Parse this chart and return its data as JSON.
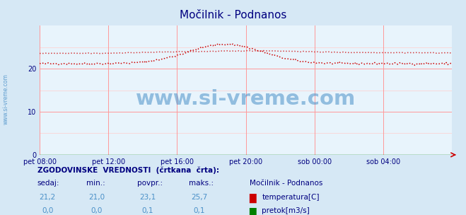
{
  "title": "Močilnik - Podnanos",
  "title_color": "#000080",
  "bg_color": "#d6e8f5",
  "plot_bg_color": "#e8f4fc",
  "grid_color": "#ff9999",
  "grid_color_minor": "#ffcccc",
  "x_labels": [
    "pet 08:00",
    "pet 12:00",
    "pet 16:00",
    "pet 20:00",
    "sob 00:00",
    "sob 04:00"
  ],
  "x_ticks_norm": [
    0.0,
    0.1667,
    0.3333,
    0.5,
    0.6667,
    0.8333
  ],
  "y_ticks": [
    0,
    10,
    20
  ],
  "ylim": [
    0,
    30
  ],
  "xlim": [
    0,
    1
  ],
  "temp_current_color": "#cc0000",
  "temp_hist_color": "#cc0000",
  "flow_color": "#008000",
  "watermark": "www.si-vreme.com",
  "watermark_color": "#4a90c8",
  "left_label": "www.si-vreme.com",
  "left_label_color": "#4a90c8",
  "footer_title": "ZGODOVINSKE  VREDNOSTI  (črtkana  črta):",
  "footer_cols": [
    "sedaj:",
    "min.:",
    "povpr.:",
    "maks.:"
  ],
  "footer_temp": [
    "21,2",
    "21,0",
    "23,1",
    "25,7"
  ],
  "footer_flow": [
    "0,0",
    "0,0",
    "0,1",
    "0,1"
  ],
  "footer_station": "Močilnik - Podnanos",
  "footer_temp_label": "temperatura[C]",
  "footer_flow_label": "pretok[m3/s]",
  "footer_color": "#000080",
  "footer_value_color": "#4a90c8",
  "temp_color_box": "#cc0000",
  "flow_color_box": "#008000"
}
